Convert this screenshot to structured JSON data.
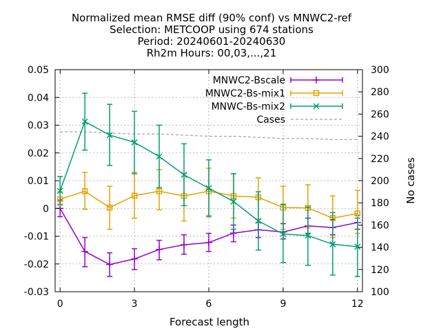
{
  "chart_data": {
    "type": "line",
    "title_lines": [
      "Normalized mean RMSE diff (90% conf) vs MNWC2-ref",
      "Selection: METCOOP using   674 stations",
      "Period: 20240601-20240630",
      "Rh2m   Hours: 00,03,...,21"
    ],
    "xlabel": "Forecast length",
    "ylabel": "",
    "y2label": "No cases",
    "xlim": [
      -0.2,
      12.2
    ],
    "ylim": [
      -0.03,
      0.05
    ],
    "y2lim": [
      100,
      300
    ],
    "xticks": [
      0,
      3,
      6,
      9,
      12
    ],
    "yticks": [
      -0.03,
      -0.02,
      -0.01,
      0,
      0.01,
      0.02,
      0.03,
      0.04,
      0.05
    ],
    "ytick_labels": [
      "-0.03",
      "-0.02",
      "-0.01",
      "0",
      "0.01",
      "0.02",
      "0.03",
      "0.04",
      "0.05"
    ],
    "y2ticks": [
      100,
      120,
      140,
      160,
      180,
      200,
      220,
      240,
      260,
      280,
      300
    ],
    "grid": true,
    "legend_position": "top-right",
    "x": [
      0,
      1,
      2,
      3,
      4,
      5,
      6,
      7,
      8,
      9,
      10,
      11,
      12
    ],
    "series": [
      {
        "name": "MNWC2-Bscale",
        "color": "#9400d3",
        "marker": "plus",
        "values": [
          0.0,
          -0.0155,
          -0.0202,
          -0.0182,
          -0.0148,
          -0.0131,
          -0.0123,
          -0.0089,
          -0.0077,
          -0.0085,
          -0.0063,
          -0.0069,
          -0.0051
        ],
        "err_low": [
          -0.003,
          -0.021,
          -0.0245,
          -0.022,
          -0.0185,
          -0.0165,
          -0.0155,
          -0.012,
          -0.0105,
          -0.011,
          -0.009,
          -0.0095,
          -0.0075
        ],
        "err_high": [
          0.003,
          -0.0105,
          -0.016,
          -0.0145,
          -0.0115,
          -0.0095,
          -0.009,
          -0.006,
          -0.005,
          -0.0055,
          -0.0035,
          -0.004,
          -0.0025
        ]
      },
      {
        "name": "MNWC2-Bs-mix1",
        "color": "#e69f00",
        "marker": "square",
        "values": [
          0.0033,
          0.0062,
          0.0003,
          0.0046,
          0.0062,
          0.0045,
          0.0062,
          0.0045,
          0.004,
          0.0003,
          0.0002,
          -0.0035,
          -0.0018
        ],
        "err_low": [
          0.001,
          -0.0003,
          -0.0075,
          -0.0035,
          -0.0005,
          -0.0045,
          -0.0025,
          -0.0035,
          -0.004,
          -0.0075,
          -0.007,
          -0.0105,
          -0.009
        ],
        "err_high": [
          0.006,
          0.013,
          0.008,
          0.013,
          0.014,
          0.0125,
          0.0145,
          0.0125,
          0.011,
          0.008,
          0.0085,
          0.0045,
          0.0065
        ]
      },
      {
        "name": "MNWC-Bs-mix2",
        "color": "#009e73",
        "marker": "cross",
        "values": [
          0.0063,
          0.0313,
          0.0264,
          0.0238,
          0.0187,
          0.0121,
          0.0073,
          0.0025,
          -0.0045,
          -0.0092,
          -0.0098,
          -0.0129,
          -0.0138
        ],
        "err_low": [
          0.0015,
          0.021,
          0.0155,
          0.0125,
          0.0075,
          0.001,
          -0.003,
          -0.0075,
          -0.015,
          -0.0195,
          -0.0205,
          -0.024,
          -0.0245
        ],
        "err_high": [
          0.0115,
          0.0415,
          0.0375,
          0.035,
          0.03,
          0.0233,
          0.0175,
          0.0125,
          0.006,
          0.0015,
          0.0005,
          -0.0015,
          -0.0035
        ]
      }
    ],
    "cases": {
      "name": "Cases",
      "color": "#a0a0a0",
      "values": [
        244,
        244,
        243,
        242,
        242,
        241,
        240,
        240,
        239,
        238,
        238,
        237,
        237
      ]
    }
  }
}
